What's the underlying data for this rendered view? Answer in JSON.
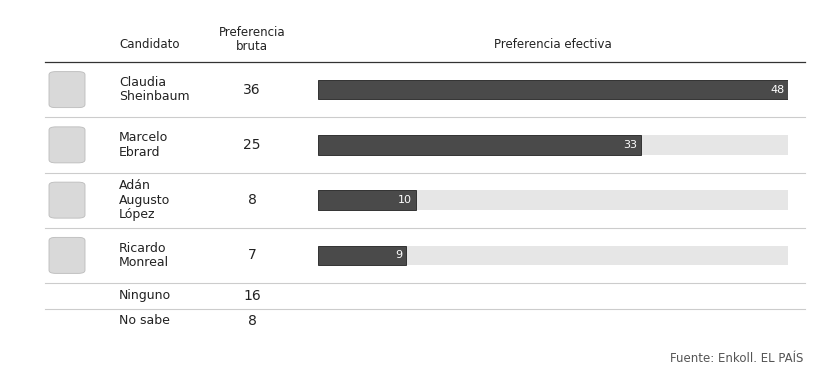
{
  "chart_data": {
    "type": "bar",
    "orientation": "horizontal",
    "column_headers": [
      "Candidato",
      "Preferencia\nbruta",
      "Preferencia efectiva"
    ],
    "categories": [
      "Claudia\nSheinbaum",
      "Marcelo\nEbrard",
      "Adán\nAugusto\nLópez",
      "Ricardo\nMonreal"
    ],
    "preferencia_bruta": [
      36,
      25,
      8,
      7
    ],
    "values": [
      48,
      33,
      10,
      9
    ],
    "color": "#4a4a4a",
    "xlim": [
      0,
      48
    ],
    "data_labels": true,
    "tick_labels": false,
    "other_rows": [
      {
        "label": "Ninguno",
        "preferencia_bruta": 16
      },
      {
        "label": "No sabe",
        "preferencia_bruta": 8
      }
    ],
    "source": "Fuente: Enkoll. EL PAÍS"
  }
}
